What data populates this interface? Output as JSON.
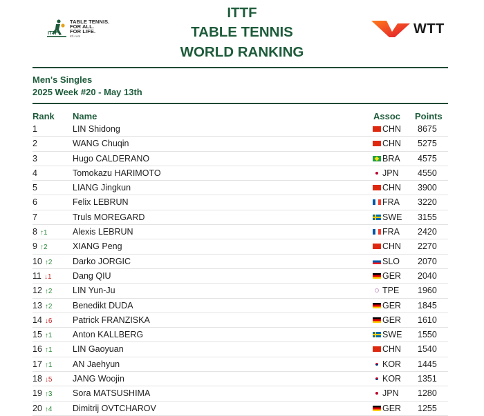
{
  "header": {
    "title_lines": [
      "ITTF",
      "TABLE TENNIS",
      "WORLD RANKING"
    ],
    "ittf_logo_lines": [
      "TABLE TENNIS.",
      "FOR ALL.",
      "FOR LIFE.",
      "ittf.com"
    ],
    "wtt_logo_text": "WTT",
    "brand_green": "#1d5b3a"
  },
  "section": {
    "category": "Men's Singles",
    "week": "2025 Week #20 - May 13th"
  },
  "columns": {
    "rank": "Rank",
    "name": "Name",
    "assoc": "Assoc",
    "points": "Points"
  },
  "rows": [
    {
      "rank": "1",
      "change": "",
      "dir": "",
      "name": "LIN Shidong",
      "assoc": "CHN",
      "flag": "chn-flag",
      "points": "8675"
    },
    {
      "rank": "2",
      "change": "",
      "dir": "",
      "name": "WANG Chuqin",
      "assoc": "CHN",
      "flag": "chn-flag",
      "points": "5275"
    },
    {
      "rank": "3",
      "change": "",
      "dir": "",
      "name": "Hugo CALDERANO",
      "assoc": "BRA",
      "flag": "bra-flag",
      "points": "4575"
    },
    {
      "rank": "4",
      "change": "",
      "dir": "",
      "name": "Tomokazu HARIMOTO",
      "assoc": "JPN",
      "flag": "jpn-flag",
      "points": "4550"
    },
    {
      "rank": "5",
      "change": "",
      "dir": "",
      "name": "LIANG Jingkun",
      "assoc": "CHN",
      "flag": "chn-flag",
      "points": "3900"
    },
    {
      "rank": "6",
      "change": "",
      "dir": "",
      "name": "Felix LEBRUN",
      "assoc": "FRA",
      "flag": "fra-flag",
      "points": "3220"
    },
    {
      "rank": "7",
      "change": "",
      "dir": "",
      "name": "Truls MOREGARD",
      "assoc": "SWE",
      "flag": "swe-flag",
      "points": "3155"
    },
    {
      "rank": "8",
      "change": "↑1",
      "dir": "up",
      "name": "Alexis LEBRUN",
      "assoc": "FRA",
      "flag": "fra-flag",
      "points": "2420"
    },
    {
      "rank": "9",
      "change": "↑2",
      "dir": "up",
      "name": "XIANG Peng",
      "assoc": "CHN",
      "flag": "chn-flag",
      "points": "2270"
    },
    {
      "rank": "10",
      "change": "↑2",
      "dir": "up",
      "name": "Darko JORGIC",
      "assoc": "SLO",
      "flag": "slo-flag",
      "points": "2070"
    },
    {
      "rank": "11",
      "change": "↓1",
      "dir": "down",
      "name": "Dang QIU",
      "assoc": "GER",
      "flag": "ger-flag",
      "points": "2040"
    },
    {
      "rank": "12",
      "change": "↑2",
      "dir": "up",
      "name": "LIN Yun-Ju",
      "assoc": "TPE",
      "flag": "tpe-flag",
      "points": "1960"
    },
    {
      "rank": "13",
      "change": "↑2",
      "dir": "up",
      "name": "Benedikt DUDA",
      "assoc": "GER",
      "flag": "ger-flag",
      "points": "1845"
    },
    {
      "rank": "14",
      "change": "↓6",
      "dir": "down",
      "name": "Patrick FRANZISKA",
      "assoc": "GER",
      "flag": "ger-flag",
      "points": "1610"
    },
    {
      "rank": "15",
      "change": "↑1",
      "dir": "up",
      "name": "Anton KALLBERG",
      "assoc": "SWE",
      "flag": "swe-flag",
      "points": "1550"
    },
    {
      "rank": "16",
      "change": "↑1",
      "dir": "up",
      "name": "LIN Gaoyuan",
      "assoc": "CHN",
      "flag": "chn-flag",
      "points": "1540"
    },
    {
      "rank": "17",
      "change": "↑1",
      "dir": "up",
      "name": "AN Jaehyun",
      "assoc": "KOR",
      "flag": "kor-flag",
      "points": "1445"
    },
    {
      "rank": "18",
      "change": "↓5",
      "dir": "down",
      "name": "JANG Woojin",
      "assoc": "KOR",
      "flag": "kor-flag",
      "points": "1351"
    },
    {
      "rank": "19",
      "change": "↑3",
      "dir": "up",
      "name": "Sora MATSUSHIMA",
      "assoc": "JPN",
      "flag": "jpn-flag",
      "points": "1280"
    },
    {
      "rank": "20",
      "change": "↑4",
      "dir": "up",
      "name": "Dimitrij OVTCHAROV",
      "assoc": "GER",
      "flag": "ger-flag",
      "points": "1255"
    }
  ]
}
